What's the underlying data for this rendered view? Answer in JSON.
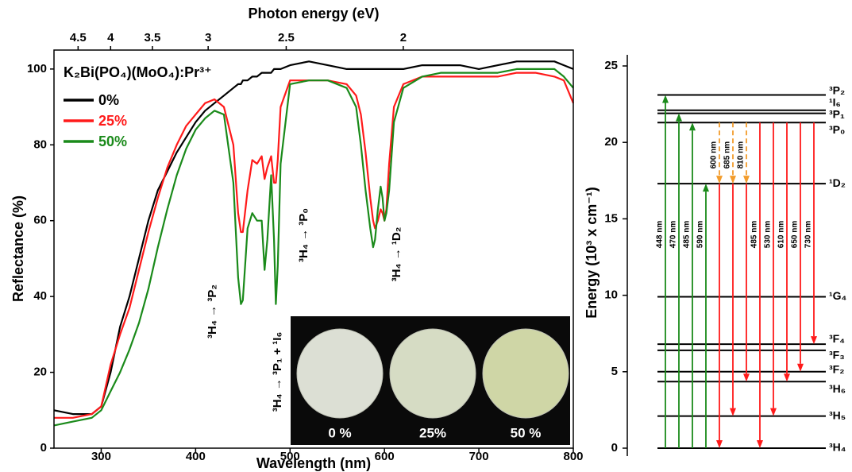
{
  "chart_data": [
    {
      "type": "line",
      "xlabel": "Wavelength (nm)",
      "ylabel": "Reflectance (%)",
      "x2label": "Photon energy (eV)",
      "xlim": [
        250,
        800
      ],
      "ylim": [
        0,
        105
      ],
      "xticks": [
        300,
        400,
        500,
        600,
        700,
        800
      ],
      "yticks": [
        0,
        20,
        40,
        60,
        80,
        100
      ],
      "x2ticks": [
        4.5,
        4,
        3.5,
        3,
        2.5,
        2
      ],
      "legend_title": "K₂Bi(PO₄)(MoO₄):Pr³⁺",
      "x": [
        250,
        270,
        290,
        300,
        310,
        320,
        330,
        340,
        350,
        360,
        370,
        380,
        390,
        400,
        410,
        420,
        430,
        440,
        445,
        448,
        450,
        455,
        460,
        465,
        470,
        473,
        476,
        480,
        483,
        485,
        487,
        490,
        500,
        520,
        540,
        560,
        570,
        575,
        580,
        585,
        588,
        590,
        593,
        596,
        598,
        600,
        602,
        605,
        610,
        620,
        640,
        660,
        680,
        700,
        720,
        740,
        760,
        780,
        790,
        800
      ],
      "series": [
        {
          "name": "0%",
          "color": "#000000",
          "values": [
            10,
            9,
            9,
            11,
            20,
            32,
            40,
            50,
            60,
            68,
            73,
            78,
            82,
            86,
            89,
            91,
            93,
            95,
            96,
            96,
            97,
            97,
            98,
            98,
            99,
            99,
            99,
            99,
            100,
            100,
            100,
            100,
            101,
            102,
            101,
            100,
            100,
            100,
            100,
            100,
            100,
            100,
            100,
            100,
            100,
            100,
            100,
            100,
            100,
            100,
            101,
            101,
            101,
            100,
            101,
            102,
            102,
            102,
            101,
            100
          ]
        },
        {
          "name": "25%",
          "color": "#ff1a1a",
          "values": [
            8,
            8,
            9,
            11,
            22,
            30,
            37,
            47,
            57,
            66,
            74,
            80,
            85,
            88,
            91,
            92,
            90,
            80,
            62,
            57,
            57,
            68,
            76,
            75,
            77,
            71,
            74,
            77,
            70,
            70,
            76,
            90,
            97,
            97,
            97,
            96,
            93,
            88,
            78,
            66,
            60,
            58,
            60,
            63,
            62,
            60,
            63,
            75,
            90,
            96,
            98,
            98,
            98,
            98,
            98,
            99,
            99,
            98,
            97,
            91
          ]
        },
        {
          "name": "50%",
          "color": "#1a8a1a",
          "values": [
            6,
            7,
            8,
            10,
            15,
            20,
            26,
            33,
            42,
            53,
            63,
            72,
            79,
            84,
            87,
            89,
            88,
            70,
            45,
            38,
            39,
            58,
            62,
            60,
            60,
            47,
            55,
            72,
            55,
            38,
            48,
            75,
            96,
            97,
            97,
            95,
            90,
            80,
            68,
            58,
            53,
            55,
            63,
            69,
            66,
            60,
            62,
            68,
            86,
            95,
            98,
            99,
            99,
            99,
            99,
            100,
            100,
            100,
            98,
            95
          ]
        }
      ],
      "annotations": [
        "³H₄ → ³P₂",
        "³H₄ → ³P₁ + ¹I₆",
        "³H₄ → ³P₀",
        "³H₄ → ¹D₂"
      ],
      "inset": {
        "labels": [
          "0 %",
          "25%",
          "50 %"
        ],
        "colors": [
          "#dcdfd4",
          "#d6dcc4",
          "#cfd6a6"
        ]
      }
    },
    {
      "type": "levels",
      "ylabel": "Energy (10³ x cm⁻¹)",
      "ylim": [
        0,
        25
      ],
      "yticks": [
        0,
        5,
        10,
        15,
        20,
        25
      ],
      "levels": [
        {
          "label": "³H₄",
          "energy": 0
        },
        {
          "label": "³H₅",
          "energy": 2.1
        },
        {
          "label": "³H₆",
          "energy": 4.35
        },
        {
          "label": "³F₂",
          "energy": 5.0
        },
        {
          "label": "³F₃",
          "energy": 6.4
        },
        {
          "label": "³F₄",
          "energy": 6.8
        },
        {
          "label": "¹G₄",
          "energy": 9.9
        },
        {
          "label": "¹D₂",
          "energy": 17.3
        },
        {
          "label": "³P₀",
          "energy": 21.3
        },
        {
          "label": "³P₁",
          "energy": 21.9
        },
        {
          "label": "¹I₆",
          "energy": 22.1
        },
        {
          "label": "³P₂",
          "energy": 23.1
        }
      ],
      "transitions": [
        {
          "label": "448 nm",
          "from": 0,
          "to": 23.1,
          "color": "#1a8a1a"
        },
        {
          "label": "470 nm",
          "from": 0,
          "to": 21.9,
          "color": "#1a8a1a"
        },
        {
          "label": "485 nm",
          "from": 0,
          "to": 21.3,
          "color": "#1a8a1a"
        },
        {
          "label": "590 nm",
          "from": 0,
          "to": 17.3,
          "color": "#1a8a1a"
        },
        {
          "label": "600 nm",
          "from": 17.3,
          "to": 0,
          "color": "#ff1a1a"
        },
        {
          "label": "685 nm",
          "from": 17.3,
          "to": 2.1,
          "color": "#ff1a1a"
        },
        {
          "label": "810 nm",
          "from": 17.3,
          "to": 4.35,
          "color": "#ff1a1a"
        },
        {
          "label": "485 nm",
          "from": 21.3,
          "to": 0,
          "color": "#ff1a1a"
        },
        {
          "label": "530 nm",
          "from": 21.3,
          "to": 2.1,
          "color": "#ff1a1a"
        },
        {
          "label": "610 nm",
          "from": 21.3,
          "to": 4.35,
          "color": "#ff1a1a"
        },
        {
          "label": "650 nm",
          "from": 21.3,
          "to": 5.0,
          "color": "#ff1a1a"
        },
        {
          "label": "730 nm",
          "from": 21.3,
          "to": 6.8,
          "color": "#ff1a1a"
        }
      ],
      "relaxations": [
        {
          "from": 21.3,
          "to": 17.3
        },
        {
          "from": 21.3,
          "to": 17.3
        },
        {
          "from": 21.3,
          "to": 17.3
        }
      ],
      "relaxation_color": "#f39c2c"
    }
  ]
}
